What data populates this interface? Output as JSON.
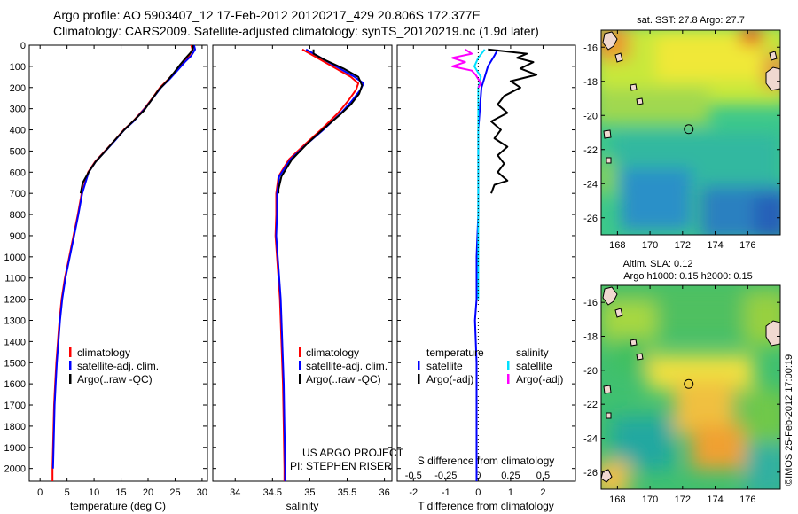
{
  "header": {
    "line1": "Argo profile: AO 5903407_12 17-Feb-2012 20120217_429 20.806S 172.377E",
    "line2": "Climatology: CARS2009. Satellite-adjusted climatology: synTS_20120219.nc (1.9d later)"
  },
  "project": {
    "line1": "US ARGO PROJECT",
    "line2": "PI: STEPHEN RISER"
  },
  "credit": "©IMOS 25-Feb-2012 17:00:19",
  "colors": {
    "climatology": "#ff0000",
    "satellite": "#0000ff",
    "argo": "#000000",
    "sat_salinity": "#00e0ff",
    "argo_salinity": "#ff00ff"
  },
  "chart_data": [
    {
      "type": "line",
      "xlabel": "temperature (deg C)",
      "xlim": [
        -2,
        31
      ],
      "xticks": [
        0,
        5,
        10,
        15,
        20,
        25,
        30
      ],
      "ylim": [
        0,
        2060
      ],
      "yticks": [
        0,
        100,
        200,
        300,
        400,
        500,
        600,
        700,
        800,
        900,
        1000,
        1100,
        1200,
        1300,
        1400,
        1500,
        1600,
        1700,
        1800,
        1900,
        2000
      ],
      "yreversed": true,
      "legend": [
        "climatology",
        "satellite-adj. clim.",
        "Argo(..raw -QC)"
      ],
      "series": [
        {
          "name": "climatology",
          "color": "#ff0000",
          "points": [
            [
              28.0,
              0
            ],
            [
              28.2,
              20
            ],
            [
              27.6,
              50
            ],
            [
              26.5,
              80
            ],
            [
              25.2,
              120
            ],
            [
              23.8,
              160
            ],
            [
              22.2,
              200
            ],
            [
              20.8,
              250
            ],
            [
              19.3,
              300
            ],
            [
              17.2,
              360
            ],
            [
              15.5,
              400
            ],
            [
              13.8,
              450
            ],
            [
              12.0,
              500
            ],
            [
              10.2,
              550
            ],
            [
              8.9,
              600
            ],
            [
              7.7,
              700
            ],
            [
              7.0,
              800
            ],
            [
              6.2,
              900
            ],
            [
              5.4,
              1000
            ],
            [
              4.6,
              1100
            ],
            [
              4.0,
              1200
            ],
            [
              3.6,
              1300
            ],
            [
              3.3,
              1400
            ],
            [
              3.0,
              1500
            ],
            [
              2.8,
              1600
            ],
            [
              2.6,
              1700
            ],
            [
              2.5,
              1800
            ],
            [
              2.4,
              1900
            ],
            [
              2.3,
              2000
            ],
            [
              2.3,
              2060
            ]
          ]
        },
        {
          "name": "satellite-adj. clim.",
          "color": "#0000ff",
          "points": [
            [
              28.5,
              0
            ],
            [
              28.7,
              20
            ],
            [
              28.0,
              50
            ],
            [
              26.8,
              80
            ],
            [
              25.4,
              120
            ],
            [
              24.0,
              160
            ],
            [
              22.4,
              200
            ],
            [
              20.9,
              250
            ],
            [
              19.4,
              300
            ],
            [
              17.3,
              360
            ],
            [
              15.6,
              400
            ],
            [
              13.9,
              450
            ],
            [
              12.1,
              500
            ],
            [
              10.3,
              550
            ],
            [
              9.0,
              600
            ],
            [
              7.8,
              700
            ],
            [
              7.1,
              800
            ],
            [
              6.3,
              900
            ],
            [
              5.5,
              1000
            ],
            [
              4.7,
              1100
            ],
            [
              4.1,
              1200
            ],
            [
              3.7,
              1300
            ],
            [
              3.4,
              1400
            ],
            [
              3.1,
              1500
            ],
            [
              2.9,
              1600
            ],
            [
              2.7,
              1700
            ],
            [
              2.6,
              1800
            ],
            [
              2.5,
              1900
            ],
            [
              2.4,
              2000
            ]
          ]
        },
        {
          "name": "Argo(..raw -QC)",
          "color": "#000000",
          "points": [
            [
              28.3,
              0
            ],
            [
              28.3,
              20
            ],
            [
              27.7,
              40
            ],
            [
              27.0,
              60
            ],
            [
              26.0,
              90
            ],
            [
              24.8,
              130
            ],
            [
              23.5,
              170
            ],
            [
              22.0,
              210
            ],
            [
              20.6,
              260
            ],
            [
              19.2,
              310
            ],
            [
              17.6,
              350
            ],
            [
              15.6,
              400
            ],
            [
              13.8,
              450
            ],
            [
              12.1,
              500
            ],
            [
              10.3,
              550
            ],
            [
              9.0,
              600
            ],
            [
              7.9,
              650
            ],
            [
              7.5,
              700
            ]
          ]
        }
      ]
    },
    {
      "type": "line",
      "xlabel": "salinity",
      "xlim": [
        33.7,
        36.1
      ],
      "xticks": [
        34,
        34.5,
        35,
        35.5,
        36
      ],
      "ylim": [
        0,
        2060
      ],
      "yreversed": true,
      "legend": [
        "climatology",
        "satellite-adj. clim.",
        "Argo(..raw -QC)"
      ],
      "series": [
        {
          "name": "climatology",
          "color": "#ff0000",
          "points": [
            [
              34.9,
              20
            ],
            [
              35.05,
              50
            ],
            [
              35.3,
              100
            ],
            [
              35.55,
              150
            ],
            [
              35.65,
              180
            ],
            [
              35.62,
              210
            ],
            [
              35.52,
              260
            ],
            [
              35.38,
              320
            ],
            [
              35.15,
              400
            ],
            [
              34.93,
              470
            ],
            [
              34.72,
              540
            ],
            [
              34.58,
              620
            ],
            [
              34.55,
              700
            ],
            [
              34.55,
              800
            ],
            [
              34.54,
              900
            ],
            [
              34.56,
              1000
            ],
            [
              34.58,
              1100
            ],
            [
              34.6,
              1200
            ],
            [
              34.62,
              1400
            ],
            [
              34.64,
              1600
            ],
            [
              34.65,
              1800
            ],
            [
              34.66,
              2000
            ],
            [
              34.66,
              2060
            ]
          ]
        },
        {
          "name": "satellite-adj. clim.",
          "color": "#0000ff",
          "points": [
            [
              34.95,
              20
            ],
            [
              35.1,
              50
            ],
            [
              35.35,
              100
            ],
            [
              35.6,
              150
            ],
            [
              35.72,
              180
            ],
            [
              35.68,
              210
            ],
            [
              35.57,
              260
            ],
            [
              35.42,
              320
            ],
            [
              35.18,
              400
            ],
            [
              34.95,
              470
            ],
            [
              34.74,
              540
            ],
            [
              34.59,
              620
            ],
            [
              34.56,
              700
            ],
            [
              34.56,
              800
            ],
            [
              34.55,
              900
            ],
            [
              34.57,
              1000
            ],
            [
              34.59,
              1100
            ],
            [
              34.61,
              1200
            ],
            [
              34.63,
              1400
            ],
            [
              34.65,
              1600
            ],
            [
              34.66,
              1800
            ],
            [
              34.67,
              2000
            ],
            [
              34.67,
              2060
            ]
          ]
        },
        {
          "name": "Argo(..raw -QC)",
          "color": "#000000",
          "points": [
            [
              35.05,
              20
            ],
            [
              35.05,
              40
            ],
            [
              35.2,
              70
            ],
            [
              35.45,
              110
            ],
            [
              35.65,
              150
            ],
            [
              35.7,
              190
            ],
            [
              35.66,
              230
            ],
            [
              35.55,
              280
            ],
            [
              35.4,
              330
            ],
            [
              35.2,
              390
            ],
            [
              34.98,
              460
            ],
            [
              34.76,
              540
            ],
            [
              34.62,
              620
            ],
            [
              34.58,
              680
            ],
            [
              34.58,
              700
            ]
          ]
        }
      ]
    },
    {
      "type": "line",
      "xlabel": "T difference from climatology",
      "xlabel2": "S difference from climatology",
      "xlim": [
        -2.5,
        3.0
      ],
      "xticks": [
        -2,
        -1,
        0,
        1,
        2
      ],
      "xlim2": [
        -0.625,
        0.75
      ],
      "xticks2": [
        -0.5,
        -0.25,
        0,
        0.25,
        0.5
      ],
      "xticklabels2": [
        "-0.5",
        "-0.25",
        "0",
        "0.25",
        "0.5"
      ],
      "ylim": [
        0,
        2060
      ],
      "yreversed": true,
      "legend_left_title": "temperature",
      "legend_right_title": "salinity",
      "legend_left": [
        "satellite",
        "Argo(-adj)"
      ],
      "legend_right": [
        "satellite",
        "Argo(-adj)"
      ],
      "series": [
        {
          "name": "T satellite",
          "color": "#0000ff",
          "points": [
            [
              0.6,
              20
            ],
            [
              0.5,
              50
            ],
            [
              0.3,
              100
            ],
            [
              0.2,
              150
            ],
            [
              0.1,
              200
            ],
            [
              0.05,
              300
            ],
            [
              0.0,
              400
            ],
            [
              0.0,
              600
            ],
            [
              0.0,
              800
            ],
            [
              -0.05,
              1000
            ],
            [
              -0.05,
              1200
            ],
            [
              -0.1,
              1300
            ],
            [
              -0.05,
              1500
            ],
            [
              -0.05,
              1700
            ],
            [
              -0.05,
              1900
            ],
            [
              -0.05,
              2000
            ],
            [
              -0.05,
              2060
            ]
          ]
        },
        {
          "name": "T Argo(-adj)",
          "color": "#000000",
          "points": [
            [
              0.3,
              20
            ],
            [
              1.5,
              40
            ],
            [
              1.2,
              60
            ],
            [
              1.7,
              80
            ],
            [
              1.3,
              110
            ],
            [
              1.8,
              140
            ],
            [
              1.0,
              170
            ],
            [
              1.3,
              200
            ],
            [
              0.8,
              240
            ],
            [
              0.6,
              280
            ],
            [
              0.9,
              320
            ],
            [
              0.4,
              360
            ],
            [
              0.7,
              400
            ],
            [
              0.5,
              440
            ],
            [
              0.9,
              480
            ],
            [
              0.6,
              520
            ],
            [
              0.8,
              560
            ],
            [
              0.6,
              600
            ],
            [
              0.9,
              640
            ],
            [
              0.5,
              660
            ],
            [
              0.4,
              700
            ]
          ]
        },
        {
          "name": "S satellite",
          "color": "#00e0ff",
          "points": [
            [
              0.05,
              20
            ],
            [
              0.0,
              60
            ],
            [
              -0.03,
              100
            ],
            [
              0.02,
              150
            ],
            [
              0.0,
              200
            ],
            [
              0.0,
              300
            ],
            [
              0.0,
              500
            ],
            [
              0.0,
              800
            ],
            [
              0.0,
              1000
            ],
            [
              0.0,
              1200
            ]
          ]
        },
        {
          "name": "S Argo(-adj)",
          "color": "#ff00ff",
          "points": [
            [
              -0.1,
              20
            ],
            [
              -0.05,
              40
            ],
            [
              -0.2,
              60
            ],
            [
              -0.1,
              80
            ],
            [
              -0.2,
              100
            ],
            [
              -0.05,
              120
            ],
            [
              -0.02,
              140
            ],
            [
              0.0,
              160
            ],
            [
              0.02,
              180
            ],
            [
              0.0,
              200
            ]
          ]
        }
      ]
    },
    {
      "type": "heatmap",
      "title": "sat. SST: 27.8 Argo: 27.7",
      "xlim": [
        167,
        178
      ],
      "ylim": [
        -27,
        -15
      ],
      "xticks": [
        168,
        170,
        172,
        174,
        176
      ],
      "yticks": [
        -16,
        -18,
        -20,
        -22,
        -24,
        -26
      ],
      "marker": [
        172.377,
        -20.806
      ]
    },
    {
      "type": "heatmap",
      "title": "Altim. SLA: 0.12",
      "subtitle": "Argo h1000: 0.15 h2000: 0.15",
      "xlim": [
        167,
        178
      ],
      "ylim": [
        -27,
        -15
      ],
      "xticks": [
        168,
        170,
        172,
        174,
        176
      ],
      "yticks": [
        -16,
        -18,
        -20,
        -22,
        -24,
        -26
      ],
      "marker": [
        172.377,
        -20.806
      ]
    }
  ]
}
